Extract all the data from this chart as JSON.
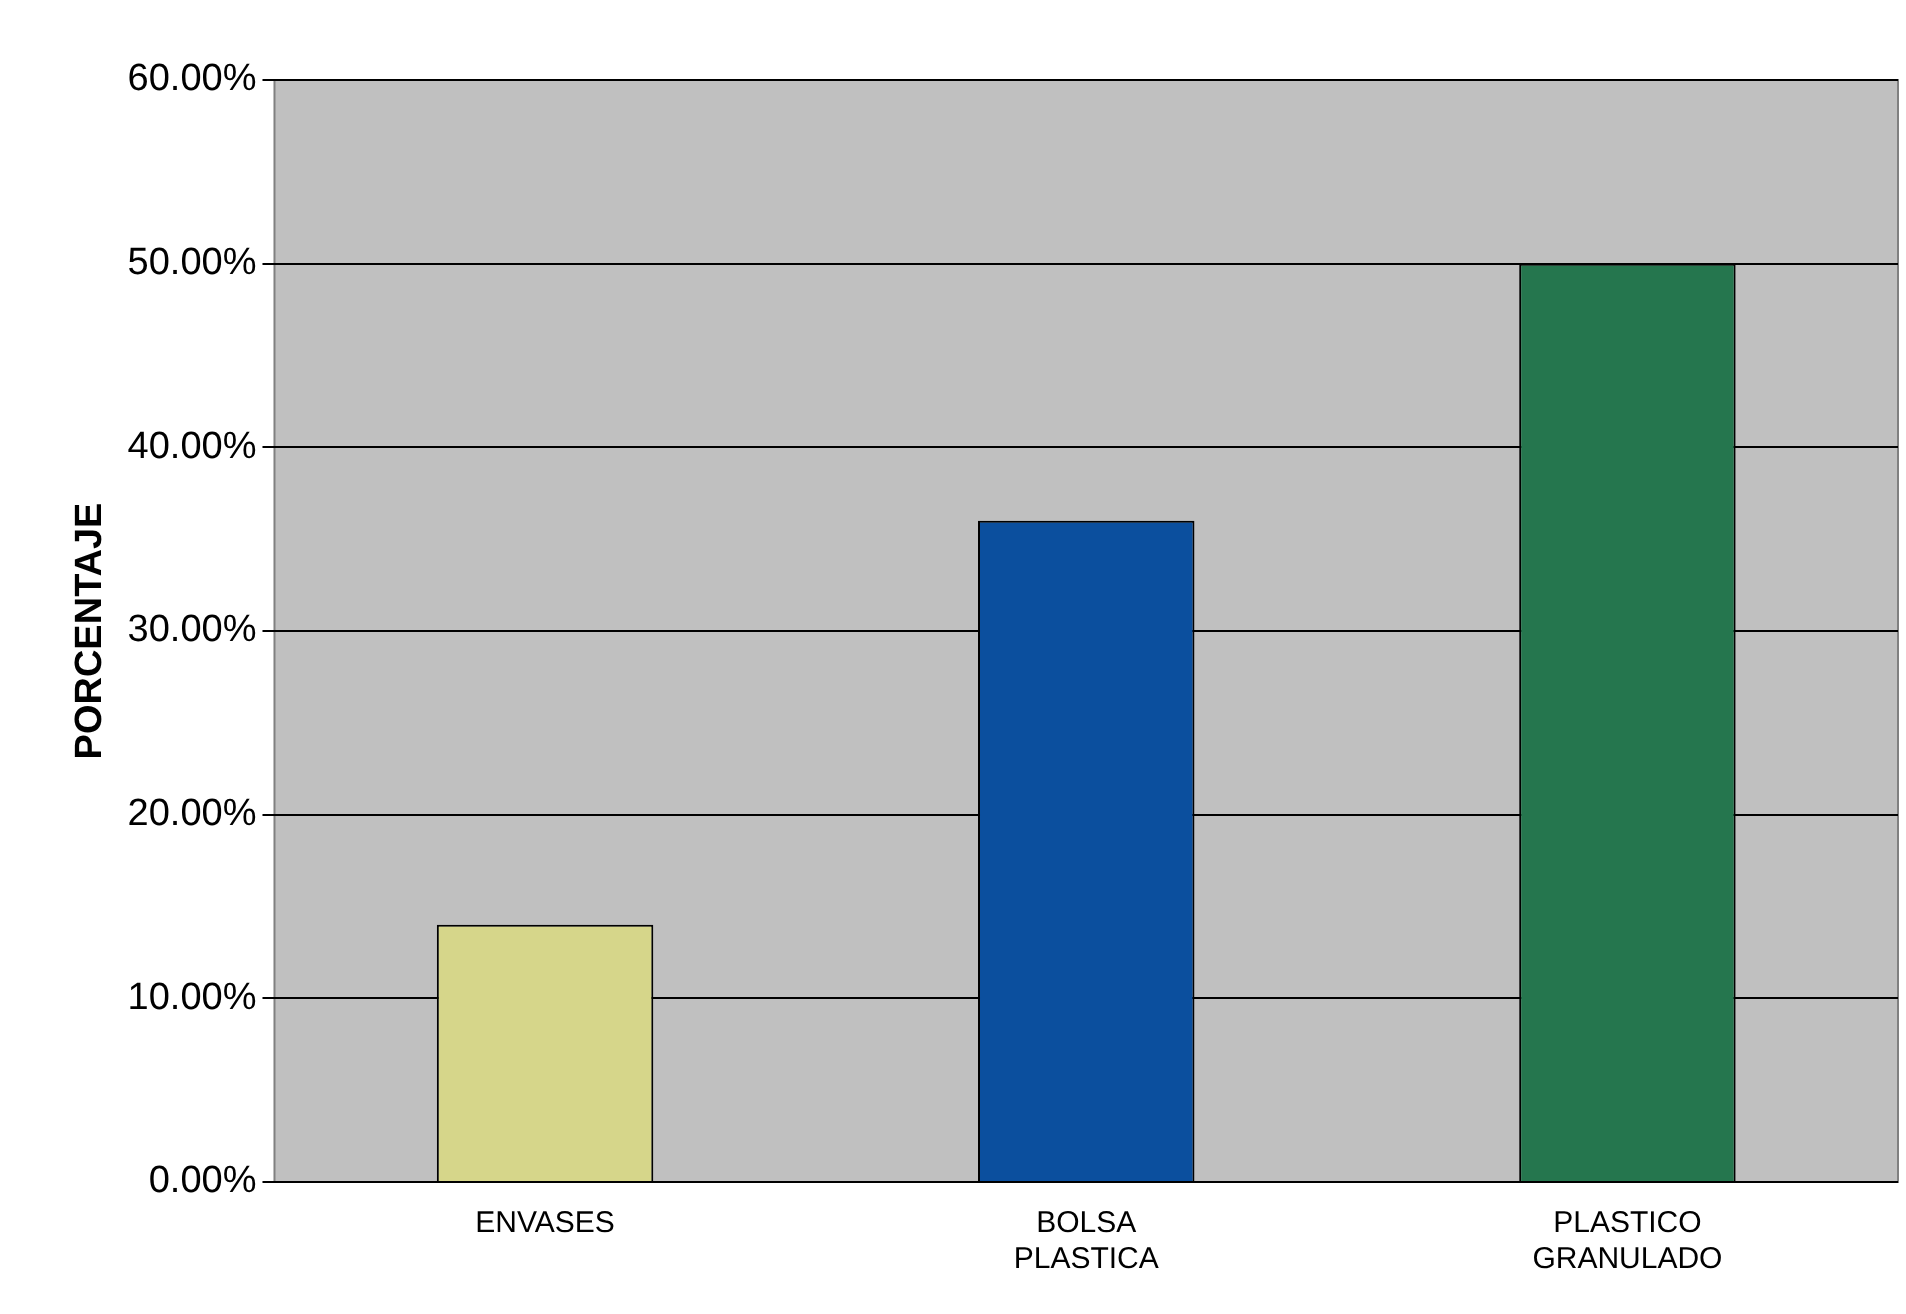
{
  "chart_data": {
    "type": "bar",
    "ylabel": "PORCENTAJE",
    "categories": [
      "ENVASES",
      "BOLSA PLASTICA",
      "PLASTICO GRANULADO"
    ],
    "values": [
      14,
      36,
      50
    ],
    "colors": [
      "#d6d68a",
      "#0b4f9e",
      "#25764e"
    ],
    "ylim": [
      0,
      60
    ],
    "yticks": [
      {
        "value": 0,
        "label": "0.00%"
      },
      {
        "value": 10,
        "label": "10.00%"
      },
      {
        "value": 20,
        "label": "20.00%"
      },
      {
        "value": 30,
        "label": "30.00%"
      },
      {
        "value": 40,
        "label": "40.00%"
      },
      {
        "value": 50,
        "label": "50.00%"
      },
      {
        "value": 60,
        "label": "60.00%"
      }
    ],
    "grid": "y"
  }
}
